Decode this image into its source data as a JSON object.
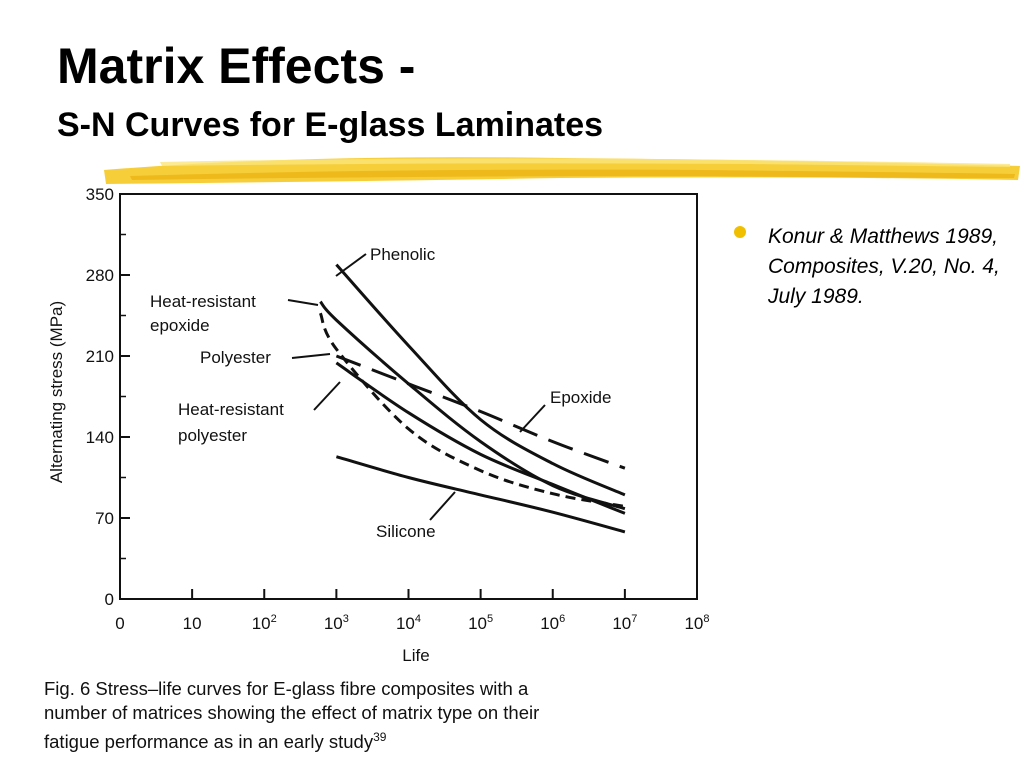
{
  "slide": {
    "title": "Matrix Effects -",
    "subtitle": "S-N Curves for E-glass Laminates",
    "bullets": [
      {
        "text": "Konur & Matthews 1989, Composites, V.20, No. 4, July 1989."
      }
    ],
    "accent_color": "#f5c518",
    "bullet_color": "#f0c000"
  },
  "chart_data": {
    "type": "line",
    "xlabel": "Life",
    "ylabel": "Alternating stress (MPa)",
    "x_scale": "log",
    "xlim": [
      1,
      100000000
    ],
    "ylim": [
      0,
      350
    ],
    "x_ticks": [
      {
        "base": "0",
        "sup": ""
      },
      {
        "base": "10",
        "sup": ""
      },
      {
        "base": "10",
        "sup": "2"
      },
      {
        "base": "10",
        "sup": "3"
      },
      {
        "base": "10",
        "sup": "4"
      },
      {
        "base": "10",
        "sup": "5"
      },
      {
        "base": "10",
        "sup": "6"
      },
      {
        "base": "10",
        "sup": "7"
      },
      {
        "base": "10",
        "sup": "8"
      }
    ],
    "y_ticks": [
      "0",
      "70",
      "140",
      "210",
      "280",
      "350"
    ],
    "grid": false,
    "series": [
      {
        "name": "Phenolic",
        "dash": "solid",
        "points": [
          [
            1000,
            289
          ],
          [
            10000,
            219
          ],
          [
            100000,
            155
          ],
          [
            1000000,
            117
          ],
          [
            10000000,
            90
          ]
        ]
      },
      {
        "name": "Heat-resistant epoxide",
        "dash": "solid",
        "points": [
          [
            600,
            257
          ],
          [
            1000,
            241
          ],
          [
            10000,
            186
          ],
          [
            100000,
            136
          ],
          [
            1000000,
            98
          ],
          [
            10000000,
            78
          ]
        ]
      },
      {
        "name": "Polyester",
        "dash": "dashed",
        "points": [
          [
            600,
            247
          ],
          [
            1000,
            216
          ],
          [
            10000,
            147
          ],
          [
            100000,
            111
          ],
          [
            1000000,
            91
          ],
          [
            10000000,
            80
          ]
        ]
      },
      {
        "name": "Epoxide",
        "dash": "long-dash",
        "points": [
          [
            1000,
            210
          ],
          [
            10000,
            186
          ],
          [
            100000,
            162
          ],
          [
            1000000,
            136
          ],
          [
            10000000,
            113
          ]
        ]
      },
      {
        "name": "Heat-resistant polyester",
        "dash": "solid",
        "points": [
          [
            1000,
            204
          ],
          [
            10000,
            161
          ],
          [
            100000,
            125
          ],
          [
            1000000,
            99
          ],
          [
            10000000,
            74
          ]
        ]
      },
      {
        "name": "Silicone",
        "dash": "solid",
        "points": [
          [
            1000,
            123
          ],
          [
            10000,
            105
          ],
          [
            100000,
            90
          ],
          [
            1000000,
            75
          ],
          [
            10000000,
            58
          ]
        ]
      }
    ],
    "series_labels": [
      {
        "text": "Phenolic"
      },
      {
        "text": "Heat-resistant"
      },
      {
        "text": "epoxide"
      },
      {
        "text": "Polyester"
      },
      {
        "text": "Heat-resistant"
      },
      {
        "text": "polyester"
      },
      {
        "text": "Epoxide"
      },
      {
        "text": "Silicone"
      }
    ],
    "caption_lines": [
      "Fig. 6    Stress–life curves for E-glass fibre composites with a",
      "number of matrices showing the effect of matrix type on their",
      "fatigue performance as in an early study"
    ],
    "caption_reference": "39"
  }
}
